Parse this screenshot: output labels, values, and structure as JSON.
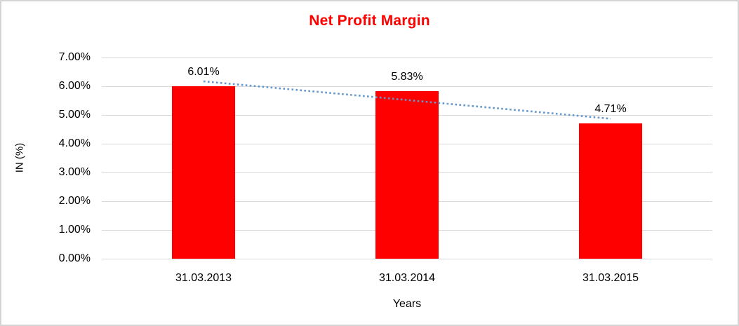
{
  "header": {
    "title": "Net Profit Margin",
    "title_color": "#FF0000"
  },
  "chart_data": {
    "type": "bar",
    "title": "Net Profit Margin",
    "xlabel": "Years",
    "ylabel": "IN (%)",
    "categories": [
      "31.03.2013",
      "31.03.2014",
      "31.03.2015"
    ],
    "values": [
      6.01,
      5.83,
      4.71
    ],
    "value_labels": [
      "6.01%",
      "5.83%",
      "4.71%"
    ],
    "ylim": [
      0,
      7
    ],
    "y_ticks": [
      {
        "value": 7,
        "label": "7.00%"
      },
      {
        "value": 6,
        "label": "6.00%"
      },
      {
        "value": 5,
        "label": "5.00%"
      },
      {
        "value": 4,
        "label": "4.00%"
      },
      {
        "value": 3,
        "label": "3.00%"
      },
      {
        "value": 2,
        "label": "2.00%"
      },
      {
        "value": 1,
        "label": "1.00%"
      },
      {
        "value": 0,
        "label": "0.00%"
      }
    ],
    "grid": true,
    "legend": "none",
    "bar_color": "#FF0000",
    "gridline_color": "#d9d9d9",
    "trendline": {
      "type": "linear",
      "style": "dotted",
      "color": "#6397CE",
      "start_value": 6.17,
      "end_value": 4.87
    }
  }
}
